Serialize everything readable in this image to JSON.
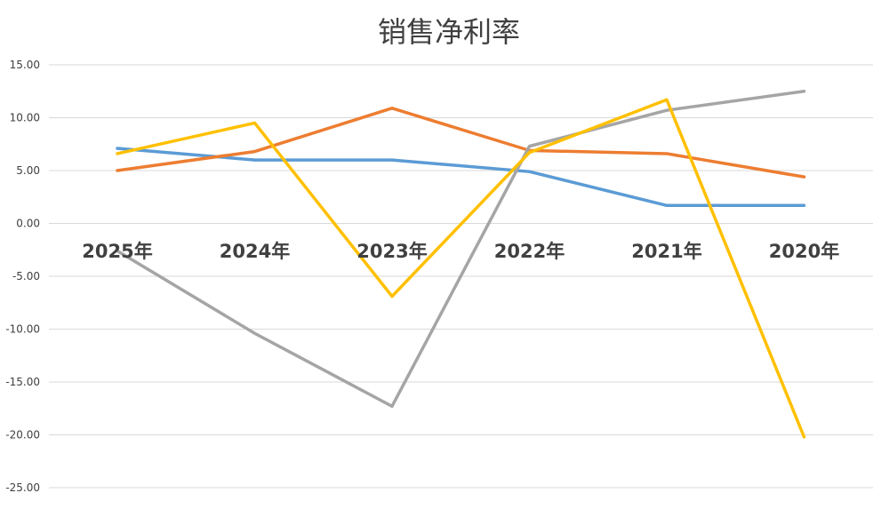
{
  "chart_data": {
    "type": "line",
    "title": "销售净利率",
    "categories": [
      "2025年",
      "2024年",
      "2023年",
      "2022年",
      "2021年",
      "2020年"
    ],
    "y_tick_labels": [
      "15.00",
      "10.00",
      "5.00",
      "0.00",
      "-5.00",
      "-10.00",
      "-15.00",
      "-20.00",
      "-25.00"
    ],
    "ylim": [
      -25,
      15
    ],
    "y_ticks": [
      15,
      10,
      5,
      0,
      -5,
      -10,
      -15,
      -20,
      -25
    ],
    "grid": true,
    "legend": "none",
    "series": [
      {
        "color": "#5b9bd5",
        "values": [
          7.1,
          6.0,
          6.0,
          4.9,
          1.7,
          1.7
        ]
      },
      {
        "color": "#ed7d31",
        "values": [
          5.0,
          6.8,
          10.9,
          6.9,
          6.6,
          4.4
        ]
      },
      {
        "color": "#a5a5a5",
        "values": [
          -2.6,
          -10.4,
          -17.3,
          7.3,
          10.7,
          12.5
        ]
      },
      {
        "color": "#ffc000",
        "values": [
          6.6,
          9.5,
          -6.9,
          6.7,
          11.7,
          -20.2
        ]
      }
    ]
  }
}
